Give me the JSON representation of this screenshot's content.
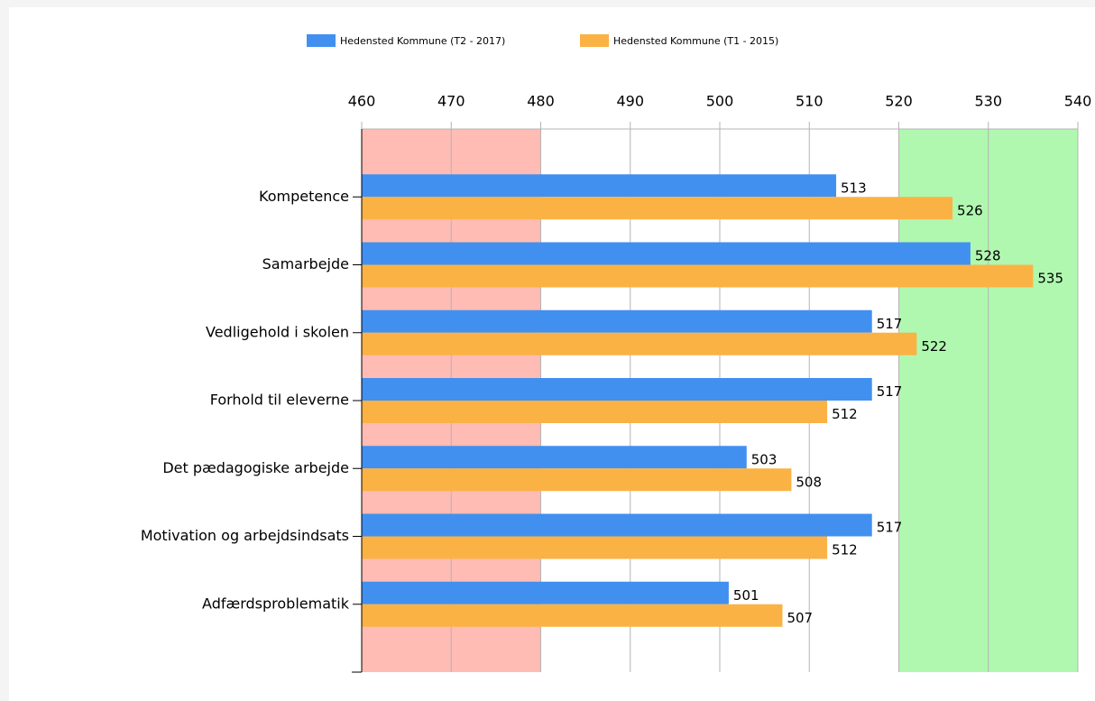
{
  "chart_data": {
    "type": "hbar",
    "categories": [
      "Kompetence",
      "Samarbejde",
      "Vedligehold i skolen",
      "Forhold til eleverne",
      "Det pædagogiske arbejde",
      "Motivation og arbejdsindsats",
      "Adfærdsproblematik"
    ],
    "series": [
      {
        "name": "Hedensted Kommune (T2 - 2017)",
        "color": "#4190f0",
        "values": [
          513,
          528,
          517,
          517,
          503,
          517,
          501
        ]
      },
      {
        "name": "Hedensted Kommune (T1 - 2015)",
        "color": "#fbb244",
        "values": [
          526,
          535,
          522,
          512,
          508,
          512,
          507
        ]
      }
    ],
    "xlim": [
      460,
      540
    ],
    "xticks": [
      460,
      470,
      480,
      490,
      500,
      510,
      520,
      530,
      540
    ],
    "grid": true,
    "legend": "top",
    "bands": [
      {
        "from": 460,
        "to": 480,
        "color": "#ffbcb4"
      },
      {
        "from": 520,
        "to": 540,
        "color": "#b0f8b0"
      }
    ]
  }
}
